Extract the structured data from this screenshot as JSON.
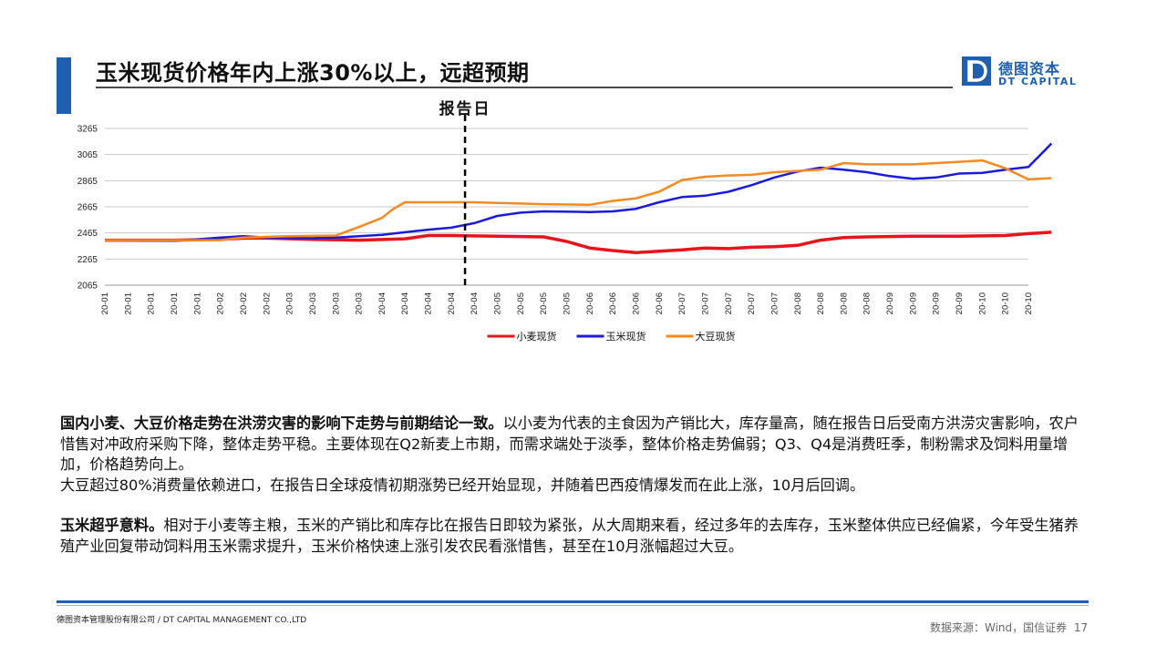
{
  "header": {
    "title": "玉米现货价格年内上涨30%以上，远超预期",
    "logo_cn": "德图资本",
    "logo_en": "DT CAPITAL",
    "accent_color": "#1f5fb0"
  },
  "chart_data": {
    "type": "line",
    "annotation": "报告日",
    "ylim": [
      2065,
      3265
    ],
    "yticks": [
      2065,
      2265,
      2465,
      2665,
      2865,
      3065,
      3265
    ],
    "xticks": [
      "20-01",
      "20-01",
      "20-01",
      "20-01",
      "20-01",
      "20-02",
      "20-02",
      "20-02",
      "20-03",
      "20-03",
      "20-03",
      "20-03",
      "20-04",
      "20-04",
      "20-04",
      "20-04",
      "20-04",
      "20-05",
      "20-05",
      "20-05",
      "20-05",
      "20-06",
      "20-06",
      "20-06",
      "20-06",
      "20-07",
      "20-07",
      "20-07",
      "20-07",
      "20-07",
      "20-08",
      "20-08",
      "20-08",
      "20-08",
      "20-09",
      "20-09",
      "20-09",
      "20-09",
      "20-10",
      "20-10",
      "20-10"
    ],
    "report_day_index": 15.6,
    "grid": true,
    "legend_position": "bottom",
    "series": [
      {
        "name": "小麦现货",
        "color": "#e8141c",
        "points": [
          [
            0,
            2410
          ],
          [
            3,
            2410
          ],
          [
            5,
            2415
          ],
          [
            6,
            2425
          ],
          [
            7,
            2425
          ],
          [
            9,
            2415
          ],
          [
            11,
            2410
          ],
          [
            13,
            2420
          ],
          [
            14,
            2445
          ],
          [
            15,
            2445
          ],
          [
            17,
            2440
          ],
          [
            19,
            2435
          ],
          [
            20,
            2400
          ],
          [
            21,
            2350
          ],
          [
            22,
            2330
          ],
          [
            23,
            2315
          ],
          [
            24,
            2325
          ],
          [
            25,
            2335
          ],
          [
            26,
            2350
          ],
          [
            27,
            2345
          ],
          [
            28,
            2355
          ],
          [
            29,
            2360
          ],
          [
            30,
            2370
          ],
          [
            31,
            2410
          ],
          [
            32,
            2430
          ],
          [
            33,
            2435
          ],
          [
            35,
            2440
          ],
          [
            37,
            2440
          ],
          [
            39,
            2445
          ],
          [
            40,
            2460
          ],
          [
            41,
            2470
          ]
        ]
      },
      {
        "name": "玉米现货",
        "color": "#1a1adc",
        "points": [
          [
            0,
            2410
          ],
          [
            3,
            2405
          ],
          [
            4,
            2415
          ],
          [
            5,
            2430
          ],
          [
            6,
            2440
          ],
          [
            7,
            2430
          ],
          [
            9,
            2425
          ],
          [
            10,
            2430
          ],
          [
            11,
            2440
          ],
          [
            12,
            2450
          ],
          [
            13,
            2470
          ],
          [
            14,
            2490
          ],
          [
            15,
            2505
          ],
          [
            16,
            2540
          ],
          [
            17,
            2595
          ],
          [
            18,
            2620
          ],
          [
            19,
            2630
          ],
          [
            21,
            2625
          ],
          [
            22,
            2630
          ],
          [
            23,
            2650
          ],
          [
            24,
            2700
          ],
          [
            25,
            2740
          ],
          [
            26,
            2750
          ],
          [
            27,
            2780
          ],
          [
            28,
            2830
          ],
          [
            29,
            2890
          ],
          [
            30,
            2935
          ],
          [
            31,
            2965
          ],
          [
            32,
            2950
          ],
          [
            33,
            2930
          ],
          [
            34,
            2900
          ],
          [
            35,
            2880
          ],
          [
            36,
            2890
          ],
          [
            37,
            2920
          ],
          [
            38,
            2925
          ],
          [
            39,
            2950
          ],
          [
            40,
            2970
          ],
          [
            40.5,
            3060
          ],
          [
            41,
            3150
          ]
        ]
      },
      {
        "name": "大豆现货",
        "color": "#f6891f",
        "points": [
          [
            0,
            2410
          ],
          [
            3,
            2410
          ],
          [
            5,
            2410
          ],
          [
            6,
            2430
          ],
          [
            8,
            2440
          ],
          [
            10,
            2445
          ],
          [
            11,
            2510
          ],
          [
            12,
            2580
          ],
          [
            12.5,
            2650
          ],
          [
            13,
            2700
          ],
          [
            14,
            2700
          ],
          [
            15,
            2700
          ],
          [
            16,
            2700
          ],
          [
            17,
            2695
          ],
          [
            18,
            2690
          ],
          [
            19,
            2685
          ],
          [
            21,
            2680
          ],
          [
            22,
            2710
          ],
          [
            23,
            2730
          ],
          [
            24,
            2780
          ],
          [
            25,
            2870
          ],
          [
            26,
            2895
          ],
          [
            27,
            2905
          ],
          [
            28,
            2910
          ],
          [
            29,
            2930
          ],
          [
            30,
            2940
          ],
          [
            31,
            2950
          ],
          [
            32,
            3000
          ],
          [
            33,
            2990
          ],
          [
            35,
            2990
          ],
          [
            36,
            3000
          ],
          [
            37,
            3010
          ],
          [
            38,
            3020
          ],
          [
            39,
            2960
          ],
          [
            40,
            2875
          ],
          [
            41,
            2885
          ]
        ]
      }
    ]
  },
  "body": {
    "p1_bold": "国内小麦、大豆价格走势在洪涝灾害的影响下走势与前期结论一致。",
    "p1_rest": "以小麦为代表的主食因为产销比大，库存量高，随在报告日后受南方洪涝灾害影响，农户惜售对冲政府采购下降，整体走势平稳。主要体现在Q2新麦上市期，而需求端处于淡季，整体价格走势偏弱；Q3、Q4是消费旺季，制粉需求及饲料用量增加，价格趋势向上。",
    "p2": "大豆超过80%消费量依赖进口，在报告日全球疫情初期涨势已经开始显现，并随着巴西疫情爆发而在此上涨，10月后回调。",
    "p3_bold": "玉米超乎意料。",
    "p3_rest": "相对于小麦等主粮，玉米的产销比和库存比在报告日即较为紧张，从大周期来看，经过多年的去库存，玉米整体供应已经偏紧，今年受生猪养殖产业回复带动饲料用玉米需求提升，玉米价格快速上涨引发农民看涨惜售，甚至在10月涨幅超过大豆。"
  },
  "footer": {
    "company": "德图资本管理股份有限公司 / DT CAPITAL MANAGEMENT CO.,LTD",
    "source": "数据来源：Wind，国信证券",
    "page": "17"
  }
}
